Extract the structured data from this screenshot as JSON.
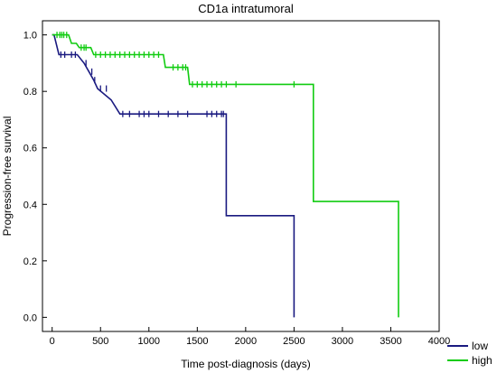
{
  "chart_data": {
    "type": "line",
    "title": "CD1a intratumoral",
    "xlabel": "Time post-diagnosis (days)",
    "ylabel": "Progression-free survival",
    "xlim": [
      -100,
      4000
    ],
    "ylim": [
      -0.05,
      1.05
    ],
    "xticks": [
      "0",
      "500",
      "1000",
      "1500",
      "2000",
      "2500",
      "3000",
      "3500",
      "4000"
    ],
    "xtick_values": [
      0,
      500,
      1000,
      1500,
      2000,
      2500,
      3000,
      3500,
      4000
    ],
    "yticks": [
      "0.0",
      "0.2",
      "0.4",
      "0.6",
      "0.8",
      "1.0"
    ],
    "ytick_values": [
      0.0,
      0.2,
      0.4,
      0.6,
      0.8,
      1.0
    ],
    "grid": false,
    "legend_position": "bottom-right, outside plot",
    "series": [
      {
        "name": "low",
        "color": "#1a1a80",
        "step_points": [
          [
            0,
            1.0
          ],
          [
            20,
            1.0
          ],
          [
            70,
            0.93
          ],
          [
            260,
            0.93
          ],
          [
            330,
            0.9
          ],
          [
            380,
            0.87
          ],
          [
            430,
            0.84
          ],
          [
            470,
            0.81
          ],
          [
            610,
            0.77
          ],
          [
            700,
            0.72
          ],
          [
            1800,
            0.72
          ],
          [
            1800,
            0.36
          ],
          [
            2500,
            0.36
          ],
          [
            2500,
            0.0
          ]
        ],
        "censor_x": [
          90,
          130,
          200,
          240,
          350,
          410,
          440,
          500,
          560,
          730,
          800,
          900,
          950,
          1000,
          1100,
          1200,
          1300,
          1400,
          1600,
          1650,
          1700,
          1750,
          1770
        ]
      },
      {
        "name": "high",
        "color": "#11cc11",
        "step_points": [
          [
            0,
            1.0
          ],
          [
            170,
            1.0
          ],
          [
            200,
            0.97
          ],
          [
            250,
            0.97
          ],
          [
            280,
            0.955
          ],
          [
            400,
            0.955
          ],
          [
            430,
            0.93
          ],
          [
            1150,
            0.93
          ],
          [
            1170,
            0.885
          ],
          [
            1400,
            0.885
          ],
          [
            1420,
            0.825
          ],
          [
            2700,
            0.825
          ],
          [
            2700,
            0.41
          ],
          [
            3580,
            0.41
          ],
          [
            3580,
            0.0
          ]
        ],
        "censor_x": [
          50,
          80,
          100,
          120,
          150,
          300,
          330,
          350,
          450,
          500,
          550,
          600,
          650,
          700,
          750,
          800,
          850,
          900,
          950,
          1000,
          1050,
          1100,
          1250,
          1300,
          1350,
          1380,
          1450,
          1500,
          1550,
          1600,
          1650,
          1700,
          1750,
          1800,
          1900,
          2500
        ]
      }
    ]
  }
}
